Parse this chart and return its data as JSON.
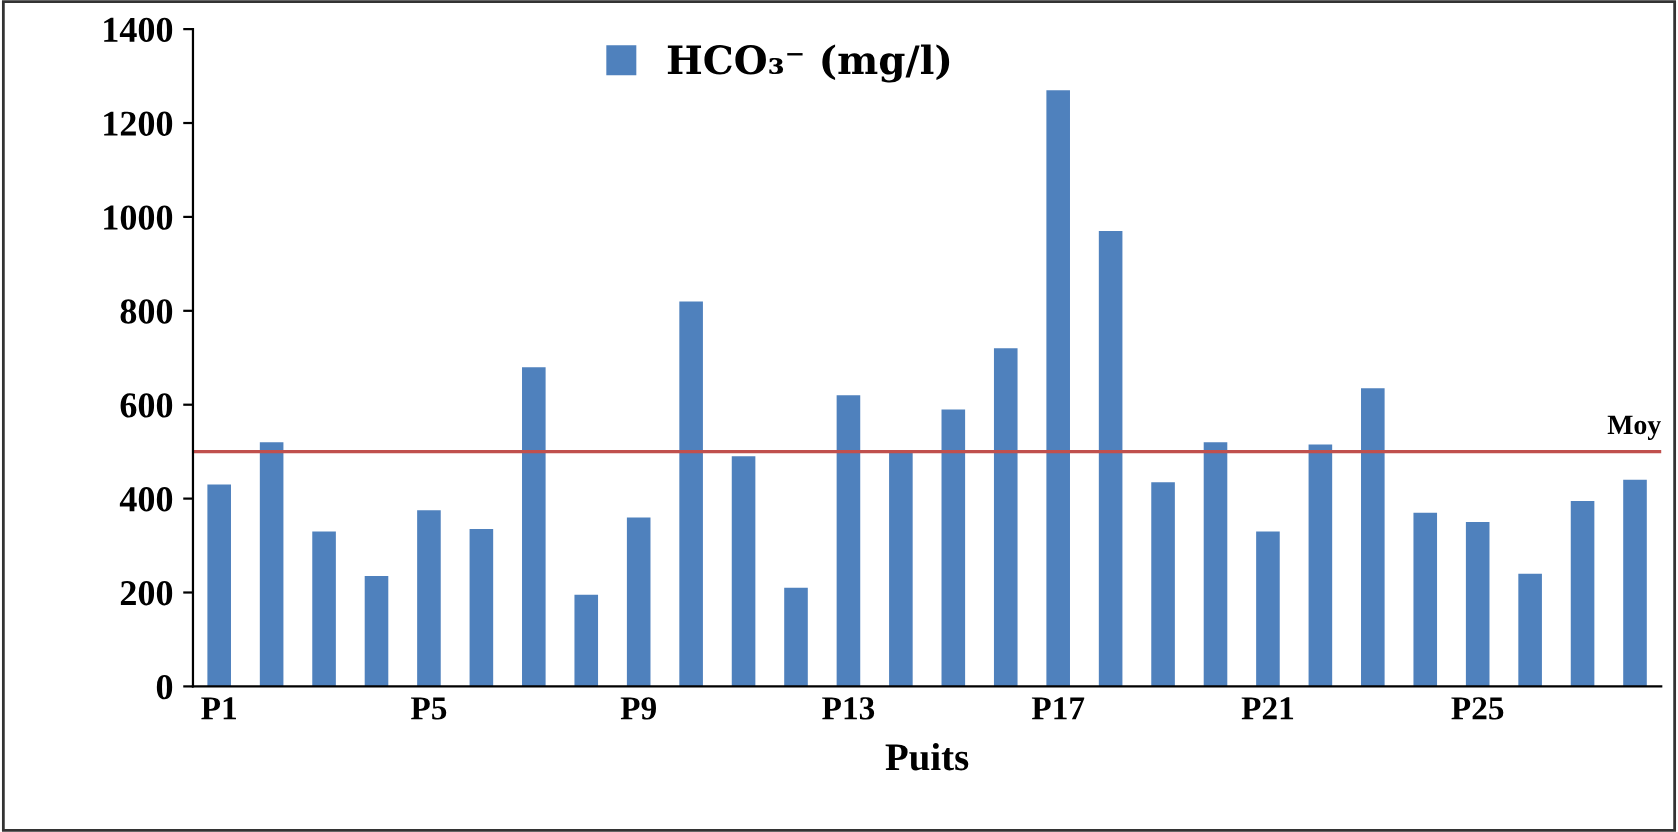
{
  "chart_data": {
    "type": "bar",
    "xlabel": "Puits",
    "categories": [
      "P1",
      null,
      null,
      null,
      "P5",
      null,
      null,
      null,
      "P9",
      null,
      null,
      null,
      "P13",
      null,
      null,
      null,
      "P17",
      null,
      null,
      null,
      "P21",
      null,
      null,
      null,
      "P25",
      null,
      null,
      null
    ],
    "series": [
      {
        "name": "HCO₃⁻ (mg/l)",
        "color": "#4f81bd",
        "values": [
          430,
          520,
          330,
          235,
          375,
          335,
          680,
          195,
          360,
          820,
          490,
          210,
          620,
          500,
          590,
          720,
          1270,
          970,
          435,
          520,
          330,
          515,
          635,
          370,
          350,
          240,
          395,
          440
        ]
      }
    ],
    "ylim": [
      0,
      1400
    ],
    "yticks": [
      0,
      200,
      400,
      600,
      800,
      1000,
      1200,
      1400
    ],
    "ref_lines": [
      {
        "axis": "y",
        "value": 500,
        "label": "Moy",
        "color": "#c0504d"
      }
    ],
    "legend": "top",
    "grid": false
  }
}
